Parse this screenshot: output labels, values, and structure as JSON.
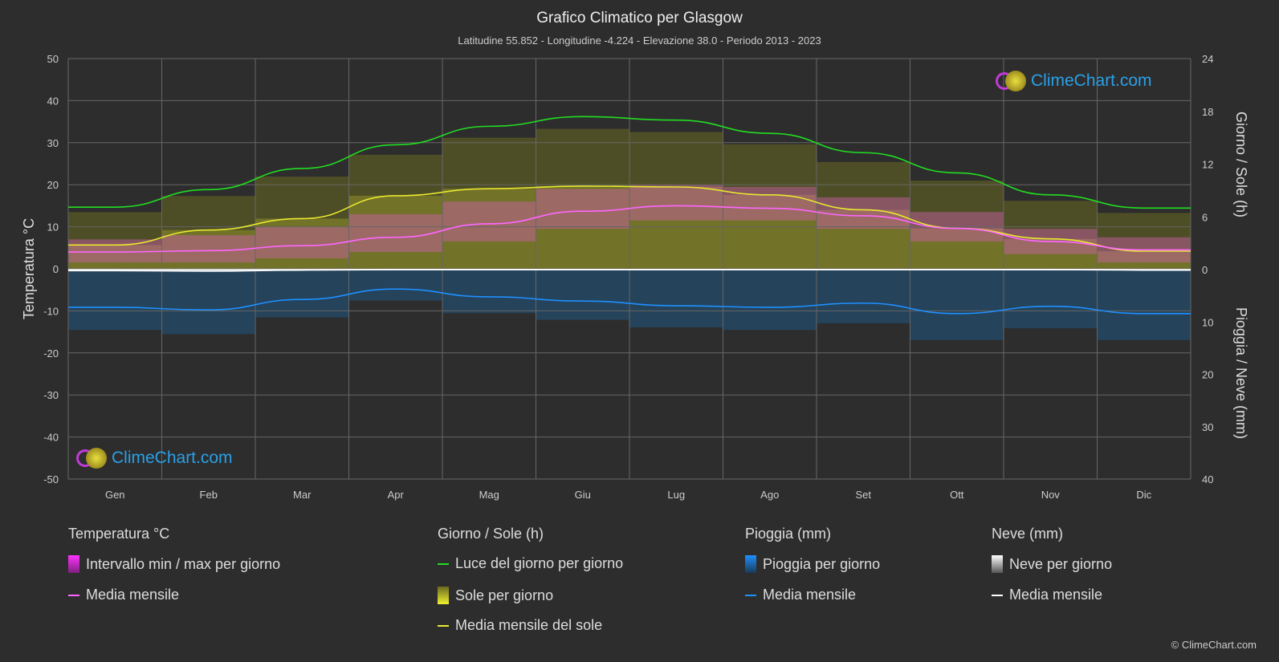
{
  "title": "Grafico Climatico per Glasgow",
  "subtitle": "Latitudine 55.852 - Longitudine -4.224 - Elevazione 38.0 - Periodo 2013 - 2023",
  "logo_text": "ClimeChart.com",
  "copyright": "© ClimeChart.com",
  "chart_data": {
    "type": "area",
    "categories": [
      "Gen",
      "Feb",
      "Mar",
      "Apr",
      "Mag",
      "Giu",
      "Lug",
      "Ago",
      "Set",
      "Ott",
      "Nov",
      "Dic"
    ],
    "y_left": {
      "label": "Temperatura °C",
      "range": [
        -50,
        50
      ],
      "ticks": [
        50,
        40,
        30,
        20,
        10,
        0,
        -10,
        -20,
        -30,
        -40,
        -50
      ]
    },
    "y_right_top": {
      "label": "Giorno / Sole (h)",
      "range": [
        0,
        24
      ],
      "ticks": [
        24,
        18,
        12,
        6,
        0
      ]
    },
    "y_right_bottom": {
      "label": "Pioggia / Neve (mm)",
      "range": [
        0,
        40
      ],
      "ticks": [
        10,
        20,
        30,
        40
      ]
    },
    "grid": true,
    "series": [
      {
        "name": "Temperatura media mensile",
        "unit": "°C",
        "color": "#ff66ff",
        "values": [
          4.0,
          4.3,
          5.5,
          7.5,
          10.7,
          13.7,
          15.0,
          14.4,
          12.6,
          9.6,
          6.5,
          4.5
        ]
      },
      {
        "name": "Temperatura max giornaliera media",
        "unit": "°C",
        "values": [
          7,
          8,
          10,
          13,
          16,
          19,
          20,
          19.5,
          17,
          13.5,
          9.5,
          7.5
        ]
      },
      {
        "name": "Temperatura min giornaliera media",
        "unit": "°C",
        "values": [
          1.5,
          1.5,
          2.5,
          4,
          6.5,
          9.5,
          11.5,
          11.5,
          9.5,
          6.5,
          3.5,
          1.5
        ]
      },
      {
        "name": "Luce del giorno per giorno",
        "unit": "h",
        "color": "#22dd22",
        "values": [
          7.1,
          9.1,
          11.5,
          14.2,
          16.3,
          17.4,
          17.0,
          15.5,
          13.3,
          11.0,
          8.5,
          7.0
        ]
      },
      {
        "name": "Media mensile del sole",
        "unit": "h",
        "color": "#e8e830",
        "values": [
          2.8,
          4.5,
          5.8,
          8.4,
          9.2,
          9.5,
          9.4,
          8.5,
          6.8,
          4.7,
          3.5,
          2.1
        ]
      },
      {
        "name": "Pioggia media mensile",
        "unit": "mm",
        "color": "#1e90ff",
        "values": [
          7.2,
          7.7,
          5.7,
          3.7,
          5.2,
          6.0,
          6.9,
          7.2,
          6.4,
          8.4,
          7.0,
          8.4
        ]
      },
      {
        "name": "Neve media mensile",
        "unit": "mm",
        "color": "#ffffff",
        "values": [
          0.2,
          0.3,
          0.1,
          0,
          0,
          0,
          0,
          0,
          0,
          0,
          0,
          0.1
        ]
      }
    ]
  },
  "legend": {
    "temp": {
      "header": "Temperatura °C",
      "items": [
        "Intervallo min / max per giorno",
        "Media mensile"
      ]
    },
    "sun": {
      "header": "Giorno / Sole (h)",
      "items": [
        "Luce del giorno per giorno",
        "Sole per giorno",
        "Media mensile del sole"
      ]
    },
    "rain": {
      "header": "Pioggia (mm)",
      "items": [
        "Pioggia per giorno",
        "Media mensile"
      ]
    },
    "snow": {
      "header": "Neve (mm)",
      "items": [
        "Neve per giorno",
        "Media mensile"
      ]
    }
  }
}
